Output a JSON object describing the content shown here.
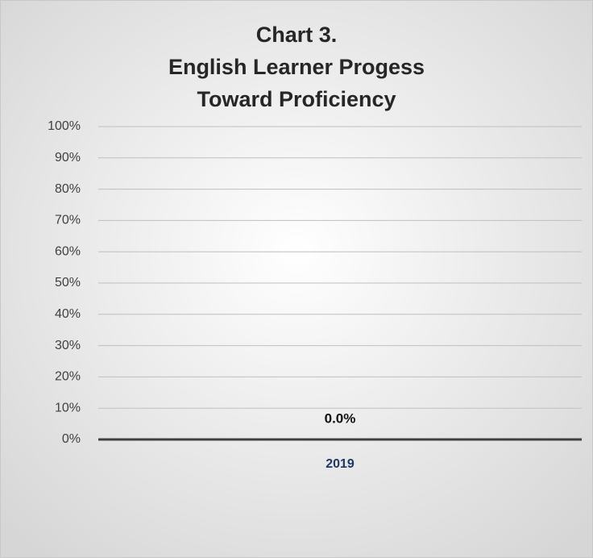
{
  "chart_data": {
    "type": "bar",
    "title": [
      "Chart 3.",
      "English Learner Progess",
      "Toward Proficiency"
    ],
    "categories": [
      "2019"
    ],
    "values": [
      0
    ],
    "value_labels": [
      "0.0%"
    ],
    "color": "#4472c4",
    "ylim": [
      0,
      100
    ],
    "yticks": [
      {
        "value": 0,
        "label": "0%"
      },
      {
        "value": 10,
        "label": "10%"
      },
      {
        "value": 20,
        "label": "20%"
      },
      {
        "value": 30,
        "label": "30%"
      },
      {
        "value": 40,
        "label": "40%"
      },
      {
        "value": 50,
        "label": "50%"
      },
      {
        "value": 60,
        "label": "60%"
      },
      {
        "value": 70,
        "label": "70%"
      },
      {
        "value": 80,
        "label": "80%"
      },
      {
        "value": 90,
        "label": "90%"
      },
      {
        "value": 100,
        "label": "100%"
      }
    ],
    "grid": true
  }
}
